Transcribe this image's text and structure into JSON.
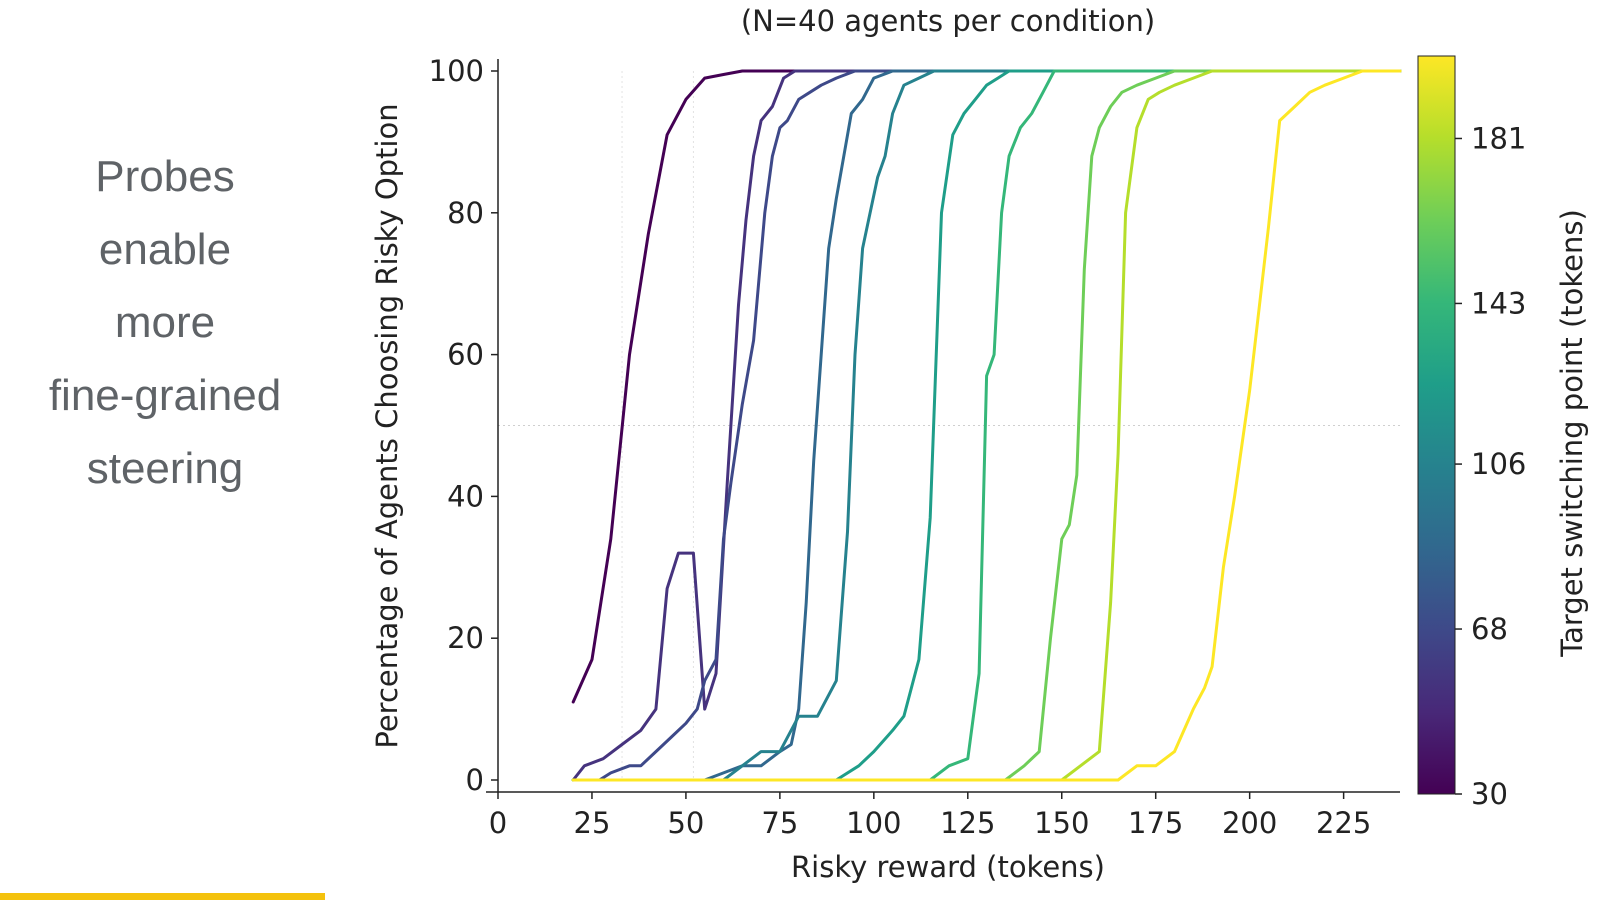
{
  "slide": {
    "text_lines": [
      "Probes",
      "enable",
      "more",
      "fine-grained",
      "steering"
    ],
    "accent_color": "#f4c20d"
  },
  "chart_data": {
    "type": "line",
    "title": "(N=40 agents per condition)",
    "xlabel": "Risky reward (tokens)",
    "ylabel": "Percentage of Agents Choosing Risky Option",
    "xlim": [
      0,
      240
    ],
    "ylim": [
      0,
      100
    ],
    "xticks": [
      0,
      25,
      50,
      75,
      100,
      125,
      150,
      175,
      200,
      225
    ],
    "yticks": [
      0,
      20,
      40,
      60,
      80,
      100
    ],
    "grid": false,
    "reference_lines": {
      "horizontal": [
        50
      ],
      "vertical": [
        33,
        52
      ]
    },
    "colorbar": {
      "label": "Target switching point (tokens)",
      "ticks": [
        30,
        68,
        106,
        143,
        181
      ],
      "range": [
        30,
        200
      ],
      "colormap": "viridis",
      "colors": [
        "#440154",
        "#482878",
        "#3e4989",
        "#31688e",
        "#26828e",
        "#1f9e89",
        "#35b779",
        "#6ece58",
        "#b5de2b",
        "#fde725"
      ]
    },
    "series": [
      {
        "color": "#440154",
        "x": [
          20,
          25,
          30,
          35,
          40,
          45,
          50,
          55,
          60,
          65,
          70,
          75,
          240
        ],
        "y": [
          11,
          17,
          34,
          60,
          77,
          91,
          96,
          99,
          99.5,
          100,
          100,
          100,
          100
        ]
      },
      {
        "color": "#46337e",
        "x": [
          20,
          23,
          28,
          33,
          38,
          42,
          45,
          48,
          52,
          55,
          58,
          61,
          64,
          66,
          68,
          70,
          73,
          76,
          79,
          240
        ],
        "y": [
          0,
          2,
          3,
          5,
          7,
          10,
          27,
          32,
          32,
          10,
          15,
          42,
          67,
          79,
          88,
          93,
          95,
          99,
          100,
          100
        ]
      },
      {
        "color": "#3e4989",
        "x": [
          20,
          27,
          30,
          35,
          38,
          42,
          46,
          50,
          53,
          55,
          58,
          60,
          62,
          65,
          68,
          71,
          73,
          75,
          77,
          80,
          83,
          86,
          90,
          95,
          240
        ],
        "y": [
          0,
          0,
          1,
          2,
          2,
          4,
          6,
          8,
          10,
          14,
          17,
          34,
          42,
          53,
          62,
          80,
          88,
          92,
          93,
          96,
          97,
          98,
          99,
          100,
          100
        ]
      },
      {
        "color": "#31688e",
        "x": [
          20,
          55,
          60,
          65,
          70,
          75,
          78,
          80,
          82,
          84,
          86,
          88,
          90,
          92,
          94,
          97,
          100,
          105,
          110,
          240
        ],
        "y": [
          0,
          0,
          1,
          2,
          2,
          4,
          5,
          10,
          25,
          45,
          60,
          75,
          82,
          88,
          94,
          96,
          99,
          100,
          100,
          100
        ]
      },
      {
        "color": "#26828e",
        "x": [
          20,
          60,
          65,
          70,
          75,
          80,
          85,
          90,
          93,
          95,
          97,
          99,
          101,
          103,
          105,
          108,
          112,
          116,
          120,
          240
        ],
        "y": [
          0,
          0,
          2,
          4,
          4,
          9,
          9,
          14,
          35,
          60,
          75,
          80,
          85,
          88,
          94,
          98,
          99,
          100,
          100,
          100
        ]
      },
      {
        "color": "#1f9e89",
        "x": [
          20,
          90,
          96,
          100,
          105,
          108,
          112,
          115,
          118,
          121,
          124,
          127,
          130,
          133,
          136,
          240
        ],
        "y": [
          0,
          0,
          2,
          4,
          7,
          9,
          17,
          37,
          80,
          91,
          94,
          96,
          98,
          99,
          100,
          100
        ]
      },
      {
        "color": "#35b779",
        "x": [
          20,
          115,
          120,
          125,
          128,
          130,
          132,
          134,
          136,
          139,
          142,
          145,
          148,
          152,
          240
        ],
        "y": [
          0,
          0,
          2,
          3,
          15,
          57,
          60,
          80,
          88,
          92,
          94,
          97,
          100,
          100,
          100
        ]
      },
      {
        "color": "#6ece58",
        "x": [
          20,
          135,
          140,
          144,
          147,
          150,
          152,
          154,
          156,
          158,
          160,
          163,
          166,
          170,
          175,
          180,
          240
        ],
        "y": [
          0,
          0,
          2,
          4,
          20,
          34,
          36,
          43,
          72,
          88,
          92,
          95,
          97,
          98,
          99,
          100,
          100
        ]
      },
      {
        "color": "#b5de2b",
        "x": [
          20,
          150,
          155,
          160,
          163,
          165,
          167,
          170,
          173,
          176,
          180,
          185,
          190,
          195,
          240
        ],
        "y": [
          0,
          0,
          2,
          4,
          25,
          46,
          80,
          92,
          96,
          97,
          98,
          99,
          100,
          100,
          100
        ]
      },
      {
        "color": "#fde725",
        "x": [
          20,
          165,
          170,
          175,
          180,
          185,
          188,
          190,
          193,
          196,
          200,
          205,
          208,
          212,
          216,
          220,
          225,
          230,
          240
        ],
        "y": [
          0,
          0,
          2,
          2,
          4,
          10,
          13,
          16,
          30,
          40,
          55,
          78,
          93,
          95,
          97,
          98,
          99,
          100,
          100
        ]
      }
    ]
  }
}
